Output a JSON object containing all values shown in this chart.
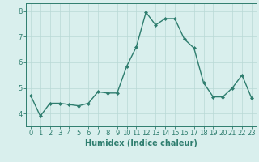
{
  "x": [
    0,
    1,
    2,
    3,
    4,
    5,
    6,
    7,
    8,
    9,
    10,
    11,
    12,
    13,
    14,
    15,
    16,
    17,
    18,
    19,
    20,
    21,
    22,
    23
  ],
  "y": [
    4.7,
    3.9,
    4.4,
    4.4,
    4.35,
    4.3,
    4.4,
    4.85,
    4.8,
    4.8,
    5.85,
    6.6,
    7.95,
    7.45,
    7.7,
    7.7,
    6.9,
    6.55,
    5.2,
    4.65,
    4.65,
    5.0,
    5.5,
    4.6
  ],
  "line_color": "#2e7d6e",
  "marker": "D",
  "marker_size": 2.0,
  "linewidth": 1.0,
  "xlabel": "Humidex (Indice chaleur)",
  "xlabel_fontsize": 7,
  "xlim": [
    -0.5,
    23.5
  ],
  "ylim": [
    3.5,
    8.3
  ],
  "yticks": [
    4,
    5,
    6,
    7,
    8
  ],
  "xticks": [
    0,
    1,
    2,
    3,
    4,
    5,
    6,
    7,
    8,
    9,
    10,
    11,
    12,
    13,
    14,
    15,
    16,
    17,
    18,
    19,
    20,
    21,
    22,
    23
  ],
  "background_color": "#d9efed",
  "grid_color": "#b8d9d5",
  "tick_fontsize": 6,
  "tick_color": "#2e7d6e",
  "axis_color": "#2e7d6e"
}
